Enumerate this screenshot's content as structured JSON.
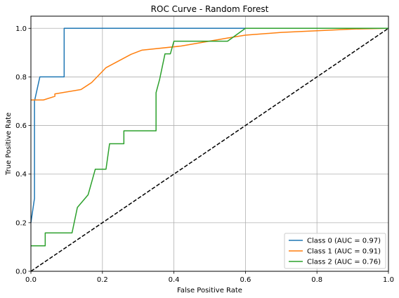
{
  "chart_data": {
    "type": "line",
    "title": "ROC Curve - Random Forest",
    "xlabel": "False Positive Rate",
    "ylabel": "True Positive Rate",
    "xlim": [
      0.0,
      1.0
    ],
    "ylim": [
      0.0,
      1.05
    ],
    "x_ticks": [
      "0.0",
      "0.2",
      "0.4",
      "0.6",
      "0.8",
      "1.0"
    ],
    "y_ticks": [
      "0.0",
      "0.2",
      "0.4",
      "0.6",
      "0.8",
      "1.0"
    ],
    "grid": true,
    "legend_position": "bottom-right",
    "series": [
      {
        "name": "Class 0 (AUC = 0.97)",
        "color": "#1f77b4",
        "points": [
          [
            0,
            0.2
          ],
          [
            0.01,
            0.3
          ],
          [
            0.01,
            0.7
          ],
          [
            0.025,
            0.8
          ],
          [
            0.093,
            0.8
          ],
          [
            0.093,
            1.0
          ],
          [
            0.6,
            1.0
          ],
          [
            1.0,
            1.0
          ]
        ]
      },
      {
        "name": "Class 1 (AUC = 0.91)",
        "color": "#ff7f0e",
        "points": [
          [
            0,
            0.705
          ],
          [
            0.035,
            0.705
          ],
          [
            0.067,
            0.72
          ],
          [
            0.067,
            0.73
          ],
          [
            0.14,
            0.748
          ],
          [
            0.17,
            0.777
          ],
          [
            0.21,
            0.838
          ],
          [
            0.28,
            0.893
          ],
          [
            0.31,
            0.91
          ],
          [
            0.42,
            0.927
          ],
          [
            0.55,
            0.96
          ],
          [
            0.6,
            0.972
          ],
          [
            0.7,
            0.983
          ],
          [
            0.8,
            0.99
          ],
          [
            0.9,
            0.997
          ],
          [
            1.0,
            1.0
          ]
        ]
      },
      {
        "name": "Class 2 (AUC = 0.76)",
        "color": "#2ca02c",
        "points": [
          [
            0,
            0.105
          ],
          [
            0.04,
            0.105
          ],
          [
            0.04,
            0.158
          ],
          [
            0.115,
            0.158
          ],
          [
            0.13,
            0.263
          ],
          [
            0.16,
            0.315
          ],
          [
            0.18,
            0.42
          ],
          [
            0.21,
            0.42
          ],
          [
            0.22,
            0.525
          ],
          [
            0.26,
            0.525
          ],
          [
            0.26,
            0.578
          ],
          [
            0.35,
            0.578
          ],
          [
            0.35,
            0.735
          ],
          [
            0.36,
            0.79
          ],
          [
            0.375,
            0.895
          ],
          [
            0.39,
            0.895
          ],
          [
            0.4,
            0.947
          ],
          [
            0.55,
            0.947
          ],
          [
            0.6,
            1.0
          ],
          [
            1.0,
            1.0
          ]
        ]
      },
      {
        "name": "",
        "color": "#000000",
        "dashed": true,
        "points": [
          [
            0,
            0
          ],
          [
            1.0,
            1.0
          ]
        ]
      }
    ]
  }
}
